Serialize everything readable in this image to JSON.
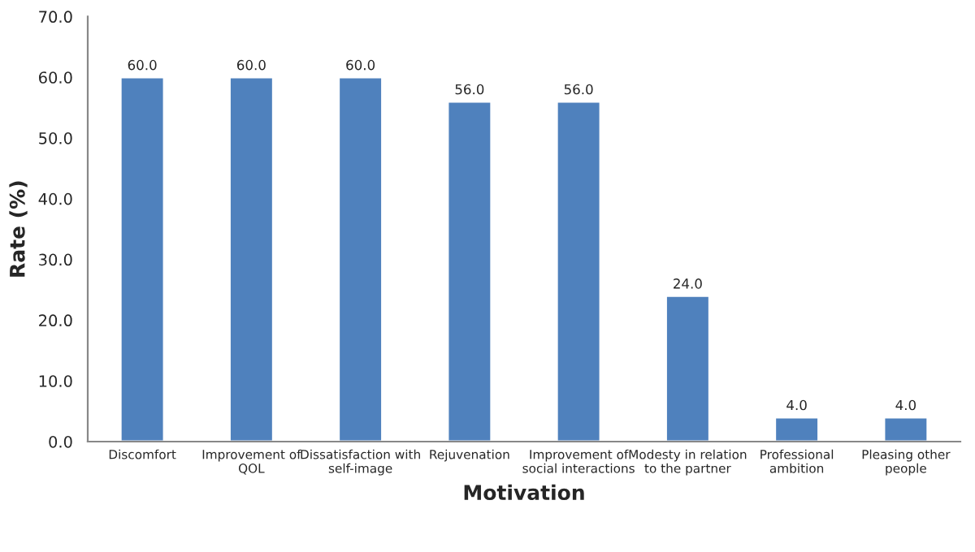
{
  "chart_data": {
    "type": "bar",
    "xlabel": "Motivation",
    "ylabel": "Rate (%)",
    "categories": [
      "Discomfort",
      "Improvement of\nQOL",
      "Dissatisfaction with\nself-image",
      "Rejuvenation",
      "Improvement of\nsocial interactions",
      "Modesty in relation\nto the partner",
      "Professional\nambition",
      "Pleasing other\npeople"
    ],
    "values": [
      60,
      60,
      60,
      56,
      56,
      24,
      4,
      4
    ],
    "value_labels": [
      "60.0",
      "60.0",
      "60.0",
      "56.0",
      "56.0",
      "24.0",
      "4.0",
      "4.0"
    ],
    "color": "#4f81bd",
    "ylim": [
      0,
      70
    ],
    "yticks": [
      {
        "value": 0,
        "label": "0.0"
      },
      {
        "value": 10,
        "label": "10.0"
      },
      {
        "value": 20,
        "label": "20.0"
      },
      {
        "value": 30,
        "label": "30.0"
      },
      {
        "value": 40,
        "label": "40.0"
      },
      {
        "value": 50,
        "label": "50.0"
      },
      {
        "value": 60,
        "label": "60.0"
      },
      {
        "value": 70,
        "label": "70.0"
      }
    ],
    "grid": false,
    "legend": false
  }
}
